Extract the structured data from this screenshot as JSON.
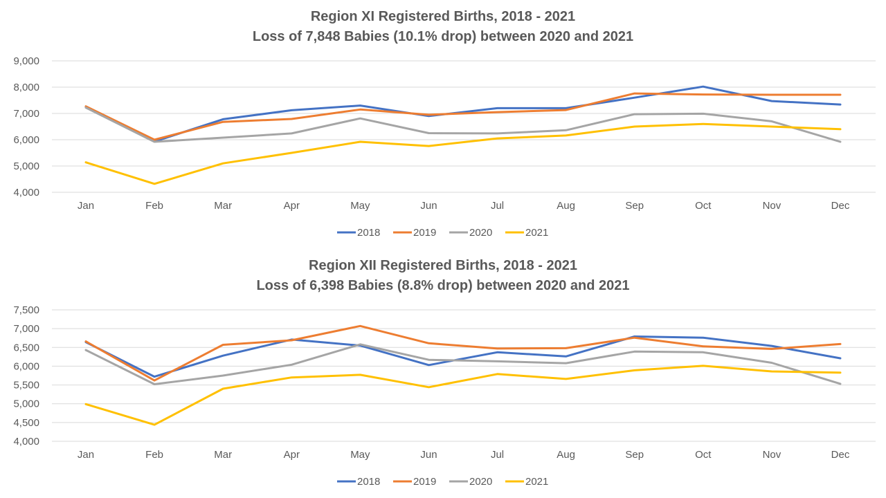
{
  "chart_data": [
    {
      "type": "line",
      "title": "Region XI Registered Births, 2018 - 2021",
      "subtitle": "Loss of 7,848 Babies (10.1% drop) between 2020 and 2021",
      "categories": [
        "Jan",
        "Feb",
        "Mar",
        "Apr",
        "May",
        "Jun",
        "Jul",
        "Aug",
        "Sep",
        "Oct",
        "Nov",
        "Dec"
      ],
      "ylim": [
        4000,
        9000
      ],
      "yticks": [
        4000,
        5000,
        6000,
        7000,
        8000,
        9000
      ],
      "ytick_labels": [
        "4,000",
        "5,000",
        "6,000",
        "7,000",
        "8,000",
        "9,000"
      ],
      "grid": true,
      "legend": "bottom",
      "series": [
        {
          "name": "2018",
          "color": "#4472C4",
          "values": [
            7230,
            5930,
            6780,
            7120,
            7300,
            6900,
            7200,
            7200,
            7600,
            8020,
            7470,
            7340
          ]
        },
        {
          "name": "2019",
          "color": "#ED7D31",
          "values": [
            7270,
            6000,
            6680,
            6790,
            7150,
            6950,
            7050,
            7130,
            7760,
            7720,
            7710,
            7710
          ]
        },
        {
          "name": "2020",
          "color": "#A5A5A5",
          "values": [
            7220,
            5920,
            6080,
            6240,
            6810,
            6250,
            6240,
            6360,
            6970,
            6990,
            6700,
            5920
          ]
        },
        {
          "name": "2021",
          "color": "#FFC000",
          "values": [
            5140,
            4320,
            5100,
            5500,
            5920,
            5760,
            6050,
            6160,
            6500,
            6600,
            6500,
            6400
          ]
        }
      ]
    },
    {
      "type": "line",
      "title": "Region XII Registered Births, 2018 - 2021",
      "subtitle": "Loss of 6,398 Babies (8.8% drop) between 2020 and 2021",
      "categories": [
        "Jan",
        "Feb",
        "Mar",
        "Apr",
        "May",
        "Jun",
        "Jul",
        "Aug",
        "Sep",
        "Oct",
        "Nov",
        "Dec"
      ],
      "ylim": [
        4000,
        7500
      ],
      "yticks": [
        4000,
        4500,
        5000,
        5500,
        6000,
        6500,
        7000,
        7500
      ],
      "ytick_labels": [
        "4,000",
        "4,500",
        "5,000",
        "5,500",
        "6,000",
        "6,500",
        "7,000",
        "7,500"
      ],
      "grid": true,
      "legend": "bottom",
      "series": [
        {
          "name": "2018",
          "color": "#4472C4",
          "values": [
            6640,
            5720,
            6280,
            6710,
            6550,
            6030,
            6370,
            6260,
            6790,
            6760,
            6540,
            6210
          ]
        },
        {
          "name": "2019",
          "color": "#ED7D31",
          "values": [
            6660,
            5620,
            6570,
            6690,
            7070,
            6610,
            6470,
            6480,
            6760,
            6530,
            6460,
            6590
          ]
        },
        {
          "name": "2020",
          "color": "#A5A5A5",
          "values": [
            6430,
            5520,
            5750,
            6040,
            6580,
            6170,
            6130,
            6080,
            6390,
            6370,
            6090,
            5530
          ]
        },
        {
          "name": "2021",
          "color": "#FFC000",
          "values": [
            4990,
            4440,
            5400,
            5700,
            5770,
            5440,
            5790,
            5660,
            5890,
            6010,
            5860,
            5830
          ]
        }
      ]
    }
  ]
}
